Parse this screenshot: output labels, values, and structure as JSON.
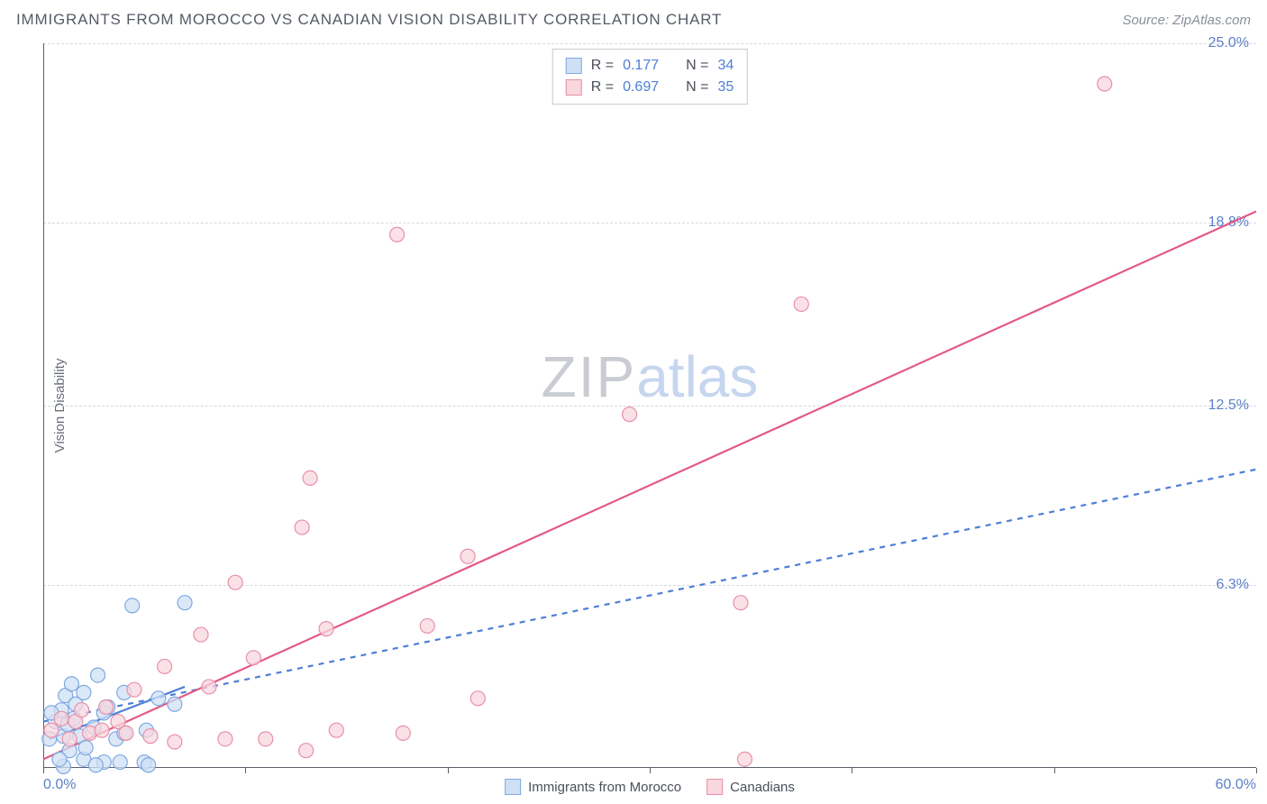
{
  "header": {
    "title": "IMMIGRANTS FROM MOROCCO VS CANADIAN VISION DISABILITY CORRELATION CHART",
    "source": "Source: ZipAtlas.com"
  },
  "watermark": {
    "part1": "ZIP",
    "part2": "atlas"
  },
  "chart": {
    "type": "scatter",
    "y_axis_label": "Vision Disability",
    "background_color": "#ffffff",
    "grid_color": "#d6d9df",
    "axis_color": "#5a5f6a",
    "tick_label_color": "#5b7fc7",
    "xlim": [
      0,
      60
    ],
    "ylim": [
      0,
      25
    ],
    "x_ticks": [
      0,
      10,
      20,
      30,
      40,
      50,
      60
    ],
    "x_tick_labels": {
      "0": "0.0%",
      "60": "60.0%"
    },
    "y_ticks": [
      6.3,
      12.5,
      18.8,
      25.0
    ],
    "y_tick_labels": [
      "6.3%",
      "12.5%",
      "18.8%",
      "25.0%"
    ],
    "marker_radius": 8,
    "marker_stroke_width": 1.2,
    "trend_line_width": 2.2,
    "series": [
      {
        "key": "morocco",
        "label": "Immigrants from Morocco",
        "R": "0.177",
        "N": "34",
        "fill": "#cfe0f5",
        "stroke": "#7fa9e0",
        "trend_color": "#4d7fd6",
        "trend_dash": "6 6",
        "trend": {
          "x1": 0,
          "y1": 1.6,
          "x2": 60,
          "y2": 10.3
        },
        "solid_segment": {
          "x1": 0.3,
          "y1": 1.0,
          "x2": 7.0,
          "y2": 2.8
        },
        "points": [
          [
            0.3,
            1.0
          ],
          [
            0.6,
            1.6
          ],
          [
            0.9,
            2.0
          ],
          [
            1.0,
            1.1
          ],
          [
            1.1,
            2.5
          ],
          [
            1.2,
            1.5
          ],
          [
            1.3,
            0.6
          ],
          [
            1.4,
            2.9
          ],
          [
            1.5,
            1.7
          ],
          [
            1.6,
            2.2
          ],
          [
            1.8,
            1.1
          ],
          [
            2.0,
            0.3
          ],
          [
            2.0,
            2.6
          ],
          [
            2.5,
            1.4
          ],
          [
            2.7,
            3.2
          ],
          [
            3.0,
            1.9
          ],
          [
            3.0,
            0.2
          ],
          [
            3.2,
            2.1
          ],
          [
            3.6,
            1.0
          ],
          [
            4.0,
            1.2
          ],
          [
            4.0,
            2.6
          ],
          [
            4.4,
            5.6
          ],
          [
            5.0,
            0.2
          ],
          [
            5.1,
            1.3
          ],
          [
            5.2,
            0.1
          ],
          [
            5.7,
            2.4
          ],
          [
            6.5,
            2.2
          ],
          [
            7.0,
            5.7
          ],
          [
            1.0,
            0.05
          ],
          [
            0.4,
            1.9
          ],
          [
            0.8,
            0.3
          ],
          [
            2.1,
            0.7
          ],
          [
            2.6,
            0.1
          ],
          [
            3.8,
            0.2
          ]
        ]
      },
      {
        "key": "canadians",
        "label": "Canadians",
        "R": "0.697",
        "N": "35",
        "fill": "#f8d7df",
        "stroke": "#e890a8",
        "trend_color": "#e35a86",
        "trend_dash": "",
        "trend": {
          "x1": 0,
          "y1": 0.3,
          "x2": 60,
          "y2": 19.2
        },
        "points": [
          [
            0.4,
            1.3
          ],
          [
            0.9,
            1.7
          ],
          [
            1.3,
            1.0
          ],
          [
            1.6,
            1.6
          ],
          [
            1.9,
            2.0
          ],
          [
            2.3,
            1.2
          ],
          [
            2.9,
            1.3
          ],
          [
            3.1,
            2.1
          ],
          [
            3.7,
            1.6
          ],
          [
            4.1,
            1.2
          ],
          [
            4.5,
            2.7
          ],
          [
            5.3,
            1.1
          ],
          [
            6.0,
            3.5
          ],
          [
            6.5,
            0.9
          ],
          [
            7.8,
            4.6
          ],
          [
            8.2,
            2.8
          ],
          [
            9.0,
            1.0
          ],
          [
            9.5,
            6.4
          ],
          [
            10.4,
            3.8
          ],
          [
            11.0,
            1.0
          ],
          [
            12.8,
            8.3
          ],
          [
            13.0,
            0.6
          ],
          [
            13.2,
            10.0
          ],
          [
            14.0,
            4.8
          ],
          [
            14.5,
            1.3
          ],
          [
            17.5,
            18.4
          ],
          [
            17.8,
            1.2
          ],
          [
            19.0,
            4.9
          ],
          [
            21.0,
            7.3
          ],
          [
            21.5,
            2.4
          ],
          [
            29.0,
            12.2
          ],
          [
            34.5,
            5.7
          ],
          [
            34.7,
            0.3
          ],
          [
            37.5,
            16.0
          ],
          [
            52.5,
            23.6
          ]
        ]
      }
    ],
    "legend_top_labels": {
      "R": "R  =",
      "N": "N  ="
    }
  }
}
